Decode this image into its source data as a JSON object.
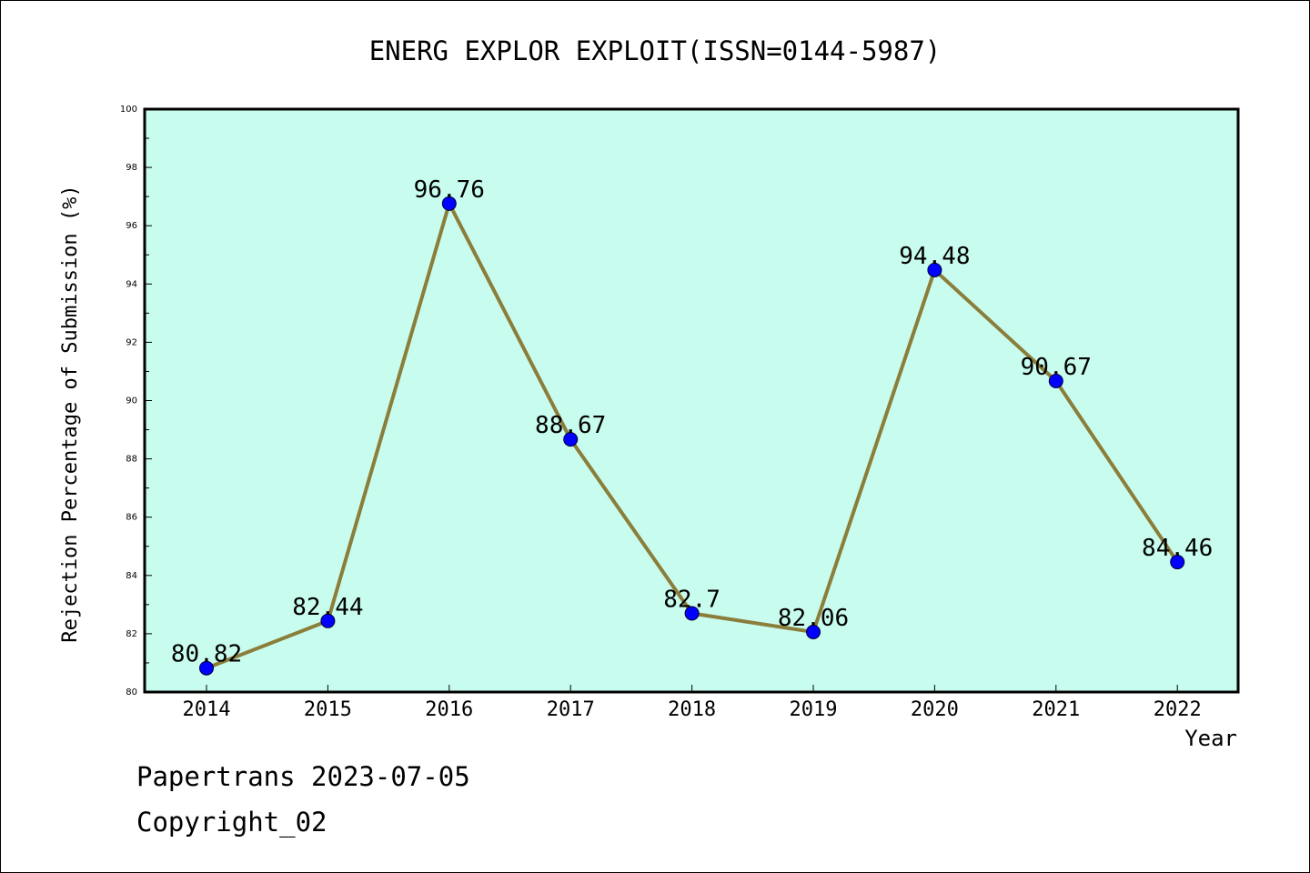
{
  "chart_data": {
    "type": "line",
    "title": "ENERG EXPLOR EXPLOIT(ISSN=0144-5987)",
    "xlabel": "Year",
    "ylabel": "Rejection Percentage of Submission (%)",
    "categories": [
      "2014",
      "2015",
      "2016",
      "2017",
      "2018",
      "2019",
      "2020",
      "2021",
      "2022"
    ],
    "values": [
      80.82,
      82.44,
      96.76,
      88.67,
      82.7,
      82.06,
      94.48,
      90.67,
      84.46
    ],
    "data_labels": [
      "80.82",
      "82.44",
      "96.76",
      "88.67",
      "82.7",
      "82.06",
      "94.48",
      "90.67",
      "84.46"
    ],
    "ylim": [
      80,
      100
    ],
    "yticks": [
      "80",
      "82",
      "84",
      "86",
      "88",
      "90",
      "92",
      "94",
      "96",
      "98",
      "100"
    ],
    "grid": false,
    "colors": {
      "plot_background": "#c8fcee",
      "line": "#8b7d3a",
      "marker": "#0000ff"
    }
  },
  "footer": {
    "line1": "Papertrans 2023-07-05",
    "line2": "Copyright_02"
  }
}
